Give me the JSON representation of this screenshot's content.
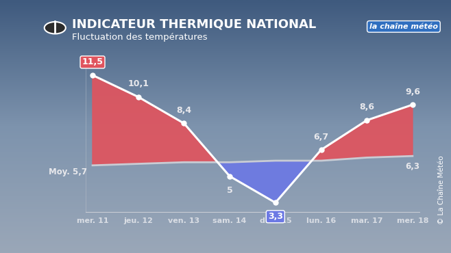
{
  "chart_data": {
    "type": "line",
    "title": "INDICATEUR THERMIQUE NATIONAL",
    "subtitle": "Fluctuation des températures",
    "categories": [
      "mer. 11",
      "jeu. 12",
      "ven. 13",
      "sam. 14",
      "dim. 15",
      "lun. 16",
      "mar. 17",
      "mer. 18"
    ],
    "series": [
      {
        "values": [
          11.5,
          10.1,
          8.4,
          5,
          3.3,
          6.7,
          8.6,
          9.6
        ],
        "value_labels": [
          "11,5",
          "10,1",
          "8,4",
          "5",
          "3,3",
          "6,7",
          "8,6",
          "9,6"
        ],
        "color": "#ffffff",
        "marker": "o"
      },
      {
        "name": "Moy.",
        "values": [
          5.7,
          5.8,
          5.9,
          5.9,
          6.0,
          6.0,
          6.2,
          6.3
        ],
        "value_labels": [
          "5,7",
          null,
          null,
          null,
          null,
          null,
          null,
          "6,3"
        ],
        "color": "#c9ccd4"
      }
    ],
    "ylim": [
      2.7,
      12.2
    ],
    "yticks": [],
    "tick_labels": "x",
    "data_labels": true,
    "grid": false,
    "logo": "la chaîne météo",
    "credit": "© La Chaîne Météo"
  }
}
